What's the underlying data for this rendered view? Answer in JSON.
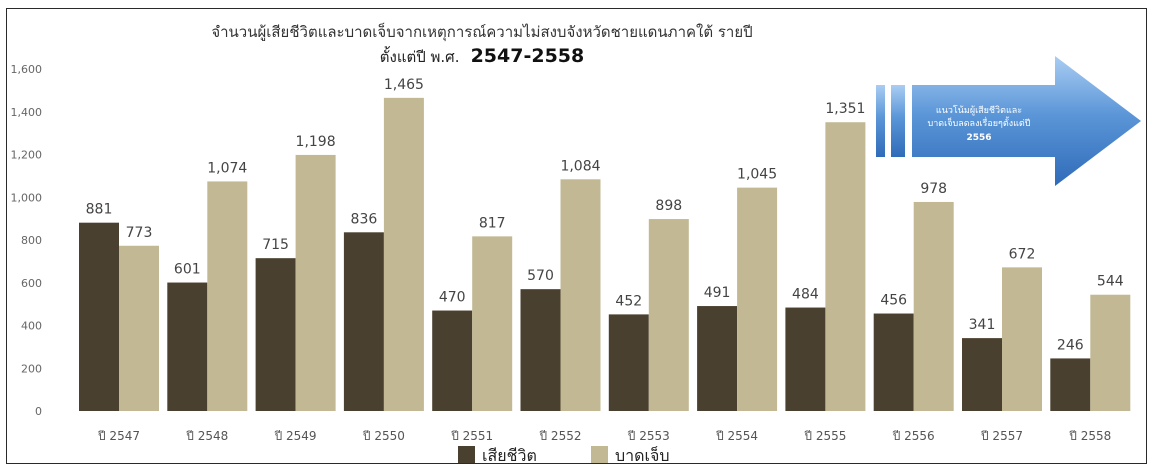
{
  "chart_data": {
    "type": "bar",
    "title": "จำนวนผู้เสียชีวิตและบาดเจ็บจากเหตุการณ์ความไม่สงบจังหวัดชายแดนภาคใต้ รายปี",
    "subtitle_prefix": "ตั้งแต่ปี พ.ศ.",
    "subtitle_years": "2547-2558",
    "categories": [
      "ปี 2547",
      "ปี 2548",
      "ปี 2549",
      "ปี 2550",
      "ปี 2551",
      "ปี 2552",
      "ปี 2553",
      "ปี 2554",
      "ปี 2555",
      "ปี 2556",
      "ปี 2557",
      "ปี 2558"
    ],
    "series": [
      {
        "name": "เสียชีวิต",
        "color": "#4a4030",
        "values": [
          881,
          601,
          715,
          836,
          470,
          570,
          452,
          491,
          484,
          456,
          341,
          246
        ]
      },
      {
        "name": "บาดเจ็บ",
        "color": "#c2b894",
        "values": [
          773,
          1074,
          1198,
          1465,
          817,
          1084,
          898,
          1045,
          1351,
          978,
          672,
          544
        ]
      }
    ],
    "value_labels": [
      [
        "881",
        "601",
        "715",
        "836",
        "470",
        "570",
        "452",
        "491",
        "484",
        "456",
        "341",
        "246"
      ],
      [
        "773",
        "1,074",
        "1,198",
        "1,465",
        "817",
        "1,084",
        "898",
        "1,045",
        "1,351",
        "978",
        "672",
        "544"
      ]
    ],
    "ylim": [
      0,
      1600
    ],
    "yticks": [
      0,
      200,
      400,
      600,
      800,
      1000,
      1200,
      1400,
      1600
    ],
    "ytick_labels": [
      "0",
      "200",
      "400",
      "600",
      "800",
      "1,000",
      "1,200",
      "1,400",
      "1,600"
    ],
    "legend_position": "bottom",
    "grid": false,
    "callout": {
      "line1": "แนวโน้มผู้เสียชีวิตและ",
      "line2": "บาดเจ็บลดลงเรื่อยๆตั้งแต่ปี",
      "line3": "2556",
      "color": "#4a86cf"
    }
  }
}
